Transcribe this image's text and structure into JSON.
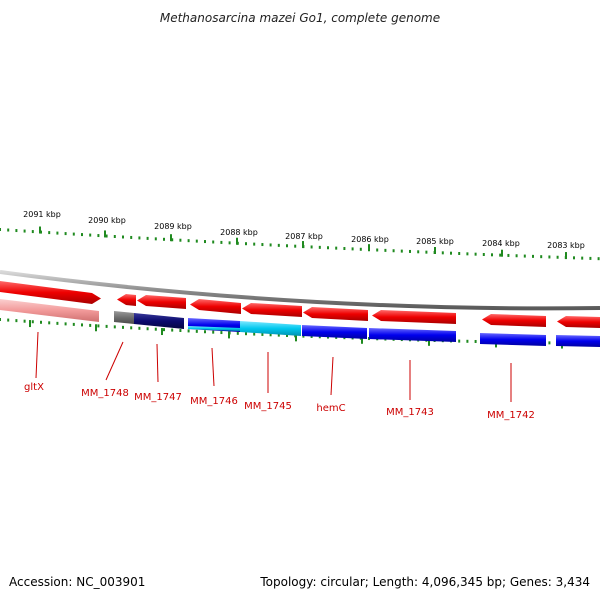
{
  "title": "Methanosarcina mazei Go1, complete genome",
  "footer": {
    "accession": "Accession: NC_003901",
    "summary": "Topology: circular; Length: 4,096,345 bp; Genes: 3,434"
  },
  "colors": {
    "backbone": "#8c8c8c",
    "tick": "#1f8a1f",
    "label_line": "#cc0000",
    "gene_label": "#cc0000",
    "forward_gene": "#ee0000",
    "reverse_gene": "#0000ee",
    "pseudo_forward": "#f29a9a",
    "pseudo_reverse": "#6e6e6e",
    "dark_reverse": "#0a0a6e",
    "cyan_reverse": "#00c8ee"
  },
  "ruler": {
    "labels": [
      "2091 kbp",
      "2090 kbp",
      "2089 kbp",
      "2088 kbp",
      "2087 kbp",
      "2086 kbp",
      "2085 kbp",
      "2084 kbp",
      "2083 kbp"
    ]
  },
  "genes": [
    {
      "label": "gltX"
    },
    {
      "label": "MM_1748"
    },
    {
      "label": "MM_1747"
    },
    {
      "label": "MM_1746"
    },
    {
      "label": "MM_1745"
    },
    {
      "label": "hemC"
    },
    {
      "label": "MM_1743"
    },
    {
      "label": "MM_1742"
    }
  ]
}
